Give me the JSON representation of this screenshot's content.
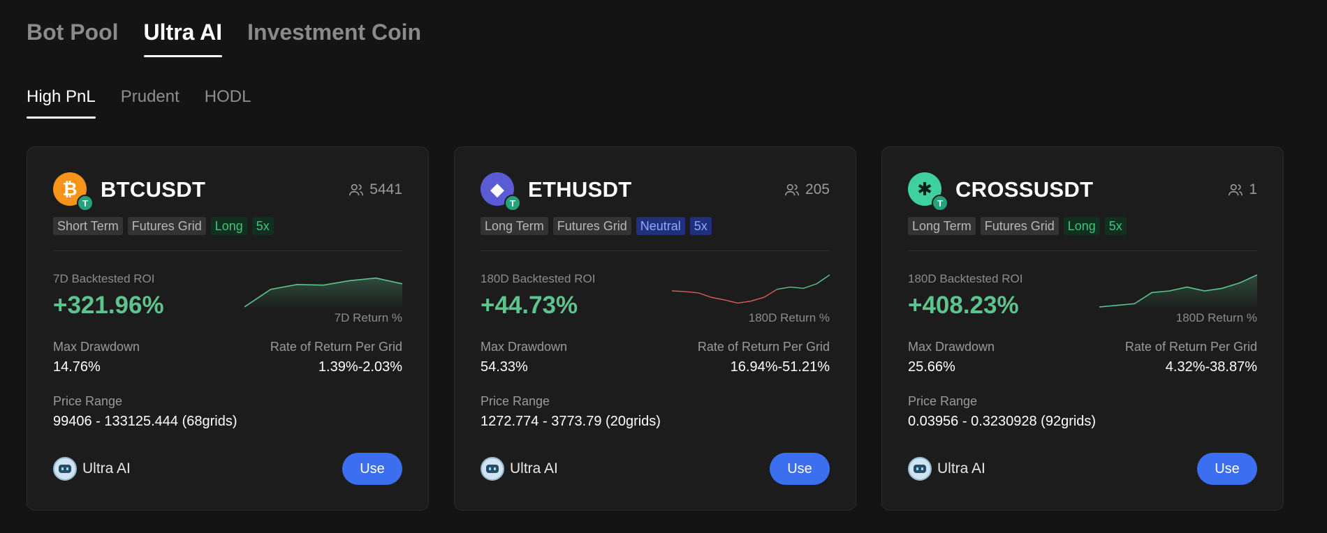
{
  "top_tabs": [
    {
      "label": "Bot Pool"
    },
    {
      "label": "Ultra AI"
    },
    {
      "label": "Investment Coin"
    }
  ],
  "sub_tabs": [
    {
      "label": "High PnL"
    },
    {
      "label": "Prudent"
    },
    {
      "label": "HODL"
    }
  ],
  "cards": [
    {
      "coin_icon": "bitcoin-icon",
      "coin_glyph": "₿",
      "quote_glyph": "T",
      "pair": "BTCUSDT",
      "users": "5441",
      "tags": [
        "Short Term",
        "Futures Grid",
        "Long",
        "5x"
      ],
      "roi_label": "7D Backtested ROI",
      "roi_value": "+321.96%",
      "spark_label": "7D Return %",
      "spark_trend": "up",
      "spark_points": [
        0.0,
        0.55,
        0.7,
        0.68,
        0.82,
        0.9,
        0.72
      ],
      "max_drawdown_label": "Max Drawdown",
      "max_drawdown": "14.76%",
      "grid_return_label": "Rate of Return Per Grid",
      "grid_return": "1.39%-2.03%",
      "price_range_label": "Price Range",
      "price_range": "99406 - 133125.444 (68grids)",
      "strategy": "Ultra AI",
      "button": "Use"
    },
    {
      "coin_icon": "ethereum-icon",
      "coin_glyph": "◆",
      "quote_glyph": "T",
      "pair": "ETHUSDT",
      "users": "205",
      "tags": [
        "Long Term",
        "Futures Grid",
        "Neutral",
        "5x"
      ],
      "roi_label": "180D Backtested ROI",
      "roi_value": "+44.73%",
      "spark_label": "180D Return %",
      "spark_trend": "mixed",
      "spark_points": [
        0.5,
        0.48,
        0.44,
        0.3,
        0.22,
        0.12,
        0.18,
        0.3,
        0.55,
        0.62,
        0.58,
        0.72,
        1.0
      ],
      "max_drawdown_label": "Max Drawdown",
      "max_drawdown": "54.33%",
      "grid_return_label": "Rate of Return Per Grid",
      "grid_return": "16.94%-51.21%",
      "price_range_label": "Price Range",
      "price_range": "1272.774 - 3773.79 (20grids)",
      "strategy": "Ultra AI",
      "button": "Use"
    },
    {
      "coin_icon": "cross-icon",
      "coin_glyph": "✱",
      "quote_glyph": "T",
      "pair": "CROSSUSDT",
      "users": "1",
      "tags": [
        "Long Term",
        "Futures Grid",
        "Long",
        "5x"
      ],
      "roi_label": "180D Backtested ROI",
      "roi_value": "+408.23%",
      "spark_label": "180D Return %",
      "spark_trend": "up",
      "spark_points": [
        0.0,
        0.05,
        0.1,
        0.45,
        0.5,
        0.62,
        0.5,
        0.58,
        0.75,
        1.0
      ],
      "max_drawdown_label": "Max Drawdown",
      "max_drawdown": "25.66%",
      "grid_return_label": "Rate of Return Per Grid",
      "grid_return": "4.32%-38.87%",
      "price_range_label": "Price Range",
      "price_range": "0.03956 - 0.3230928 (92grids)",
      "strategy": "Ultra AI",
      "button": "Use"
    }
  ],
  "colors": {
    "positive": "#5ec48e",
    "negative": "#e05d5d",
    "accent": "#3b6ff0"
  }
}
